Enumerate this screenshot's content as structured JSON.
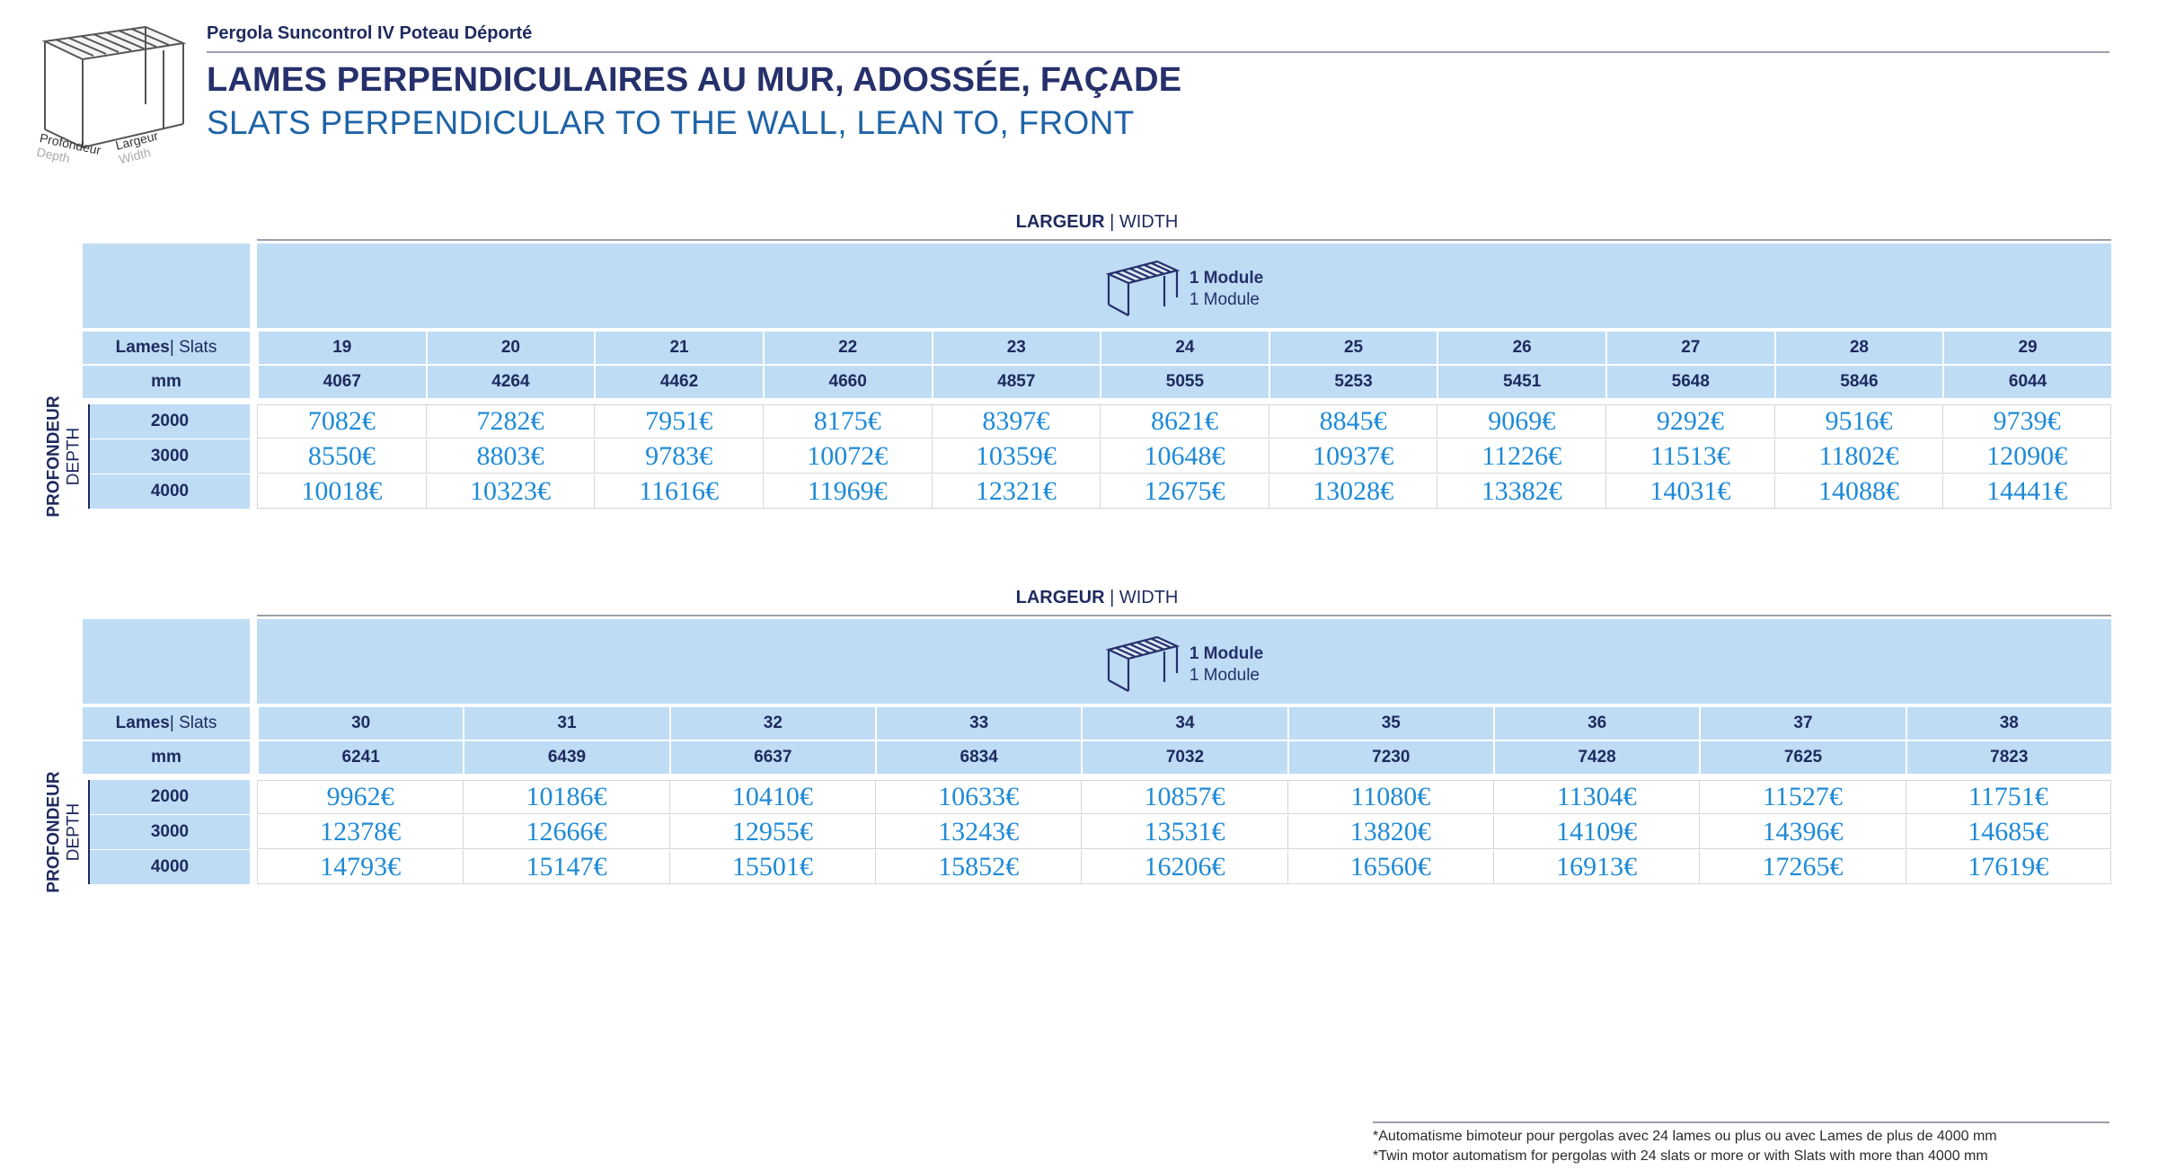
{
  "header": {
    "subtitle": "Pergola Suncontrol IV Poteau Déporté",
    "title_fr": "LAMES PERPENDICULAIRES AU MUR, ADOSSÉE, FAÇADE",
    "title_en": "SLATS PERPENDICULAR TO THE WALL, LEAN TO, FRONT",
    "logo_labels": {
      "depth_fr": "Profondeur",
      "depth_en": "Depth",
      "width_fr": "Largeur",
      "width_en": "Width"
    }
  },
  "labels": {
    "width_fr": "LARGEUR",
    "width_sep": " | ",
    "width_en": "WIDTH",
    "module_1": "1 Module",
    "module_2": "1 Module",
    "slats_fr": "Lames",
    "slats_sep": " | ",
    "slats_en": "Slats",
    "mm": "mm",
    "depth_fr": "PROFONDEUR",
    "depth_en": "DEPTH"
  },
  "tables": [
    {
      "slats": [
        "19",
        "20",
        "21",
        "22",
        "23",
        "24",
        "25",
        "26",
        "27",
        "28",
        "29"
      ],
      "widths_mm": [
        "4067",
        "4264",
        "4462",
        "4660",
        "4857",
        "5055",
        "5253",
        "5451",
        "5648",
        "5846",
        "6044"
      ],
      "rows": [
        {
          "depth": "2000",
          "prices": [
            "7082€",
            "7282€",
            "7951€",
            "8175€",
            "8397€",
            "8621€",
            "8845€",
            "9069€",
            "9292€",
            "9516€",
            "9739€"
          ]
        },
        {
          "depth": "3000",
          "prices": [
            "8550€",
            "8803€",
            "9783€",
            "10072€",
            "10359€",
            "10648€",
            "10937€",
            "11226€",
            "11513€",
            "11802€",
            "12090€"
          ]
        },
        {
          "depth": "4000",
          "prices": [
            "10018€",
            "10323€",
            "11616€",
            "11969€",
            "12321€",
            "12675€",
            "13028€",
            "13382€",
            "14031€",
            "14088€",
            "14441€"
          ]
        }
      ]
    },
    {
      "slats": [
        "30",
        "31",
        "32",
        "33",
        "34",
        "35",
        "36",
        "37",
        "38"
      ],
      "widths_mm": [
        "6241",
        "6439",
        "6637",
        "6834",
        "7032",
        "7230",
        "7428",
        "7625",
        "7823"
      ],
      "rows": [
        {
          "depth": "2000",
          "prices": [
            "9962€",
            "10186€",
            "10410€",
            "10633€",
            "10857€",
            "11080€",
            "11304€",
            "11527€",
            "11751€"
          ]
        },
        {
          "depth": "3000",
          "prices": [
            "12378€",
            "12666€",
            "12955€",
            "13243€",
            "13531€",
            "13820€",
            "14109€",
            "14396€",
            "14685€"
          ]
        },
        {
          "depth": "4000",
          "prices": [
            "14793€",
            "15147€",
            "15501€",
            "15852€",
            "16206€",
            "16560€",
            "16913€",
            "17265€",
            "17619€"
          ]
        }
      ]
    }
  ],
  "footnotes": {
    "fr": "*Automatisme bimoteur pour pergolas avec 24 lames ou plus ou avec Lames de plus de 4000 mm",
    "en": "*Twin motor automatism for pergolas with 24 slats or more or with Slats with more than 4000 mm"
  },
  "colors": {
    "navy": "#26306b",
    "blue_title": "#1e63a6",
    "band": "#bfdcf5",
    "price": "#1f8ad6"
  }
}
